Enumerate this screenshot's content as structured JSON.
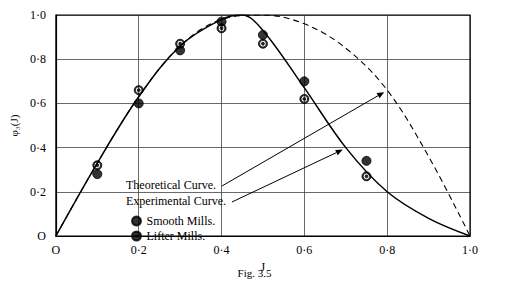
{
  "chart_data": {
    "type": "line",
    "title": "Fig. 3.5",
    "xlabel": "J",
    "ylabel": "φ₃(J)",
    "xlim": [
      0,
      1
    ],
    "ylim": [
      0,
      1
    ],
    "xticks": [
      {
        "value": 0,
        "label": "O"
      },
      {
        "value": 0.2,
        "label": "0·2"
      },
      {
        "value": 0.4,
        "label": "0·4"
      },
      {
        "value": 0.6,
        "label": "0·6"
      },
      {
        "value": 0.8,
        "label": "0·8"
      },
      {
        "value": 1,
        "label": "1·0"
      }
    ],
    "yticks": [
      {
        "value": 0,
        "label": "O"
      },
      {
        "value": 0.2,
        "label": "0·2"
      },
      {
        "value": 0.4,
        "label": "0·4"
      },
      {
        "value": 0.6,
        "label": "0·6"
      },
      {
        "value": 0.8,
        "label": "0·8"
      },
      {
        "value": 1,
        "label": "1·0"
      }
    ],
    "grid": true,
    "legend": "bottom-left",
    "series": [
      {
        "name": "Theoretical Curve.",
        "type": "line",
        "line_style": "dashed",
        "color": "#000000",
        "x": [
          0,
          0.1,
          0.2,
          0.3,
          0.4,
          0.5,
          0.6,
          0.7,
          0.8,
          0.9,
          1.0
        ],
        "values": [
          0,
          0.33,
          0.63,
          0.86,
          0.98,
          1.0,
          0.96,
          0.85,
          0.66,
          0.36,
          0
        ]
      },
      {
        "name": "Experimental Curve.",
        "type": "line",
        "line_style": "solid",
        "color": "#000000",
        "x": [
          0,
          0.1,
          0.2,
          0.3,
          0.4,
          0.45,
          0.5,
          0.6,
          0.7,
          0.8,
          0.9,
          1.0
        ],
        "values": [
          0,
          0.33,
          0.63,
          0.86,
          0.98,
          1.0,
          0.93,
          0.67,
          0.4,
          0.2,
          0.08,
          0
        ]
      },
      {
        "name": "Smooth Mills.",
        "type": "scatter",
        "marker": "filled_circle",
        "color": "#000000",
        "x": [
          0.1,
          0.2,
          0.3,
          0.4,
          0.5,
          0.6,
          0.75
        ],
        "values": [
          0.28,
          0.6,
          0.84,
          0.97,
          0.91,
          0.7,
          0.34
        ]
      },
      {
        "name": "Lifter Mills.",
        "type": "scatter",
        "marker": "circled_dot",
        "color": "#000000",
        "x": [
          0.1,
          0.2,
          0.3,
          0.4,
          0.5,
          0.6,
          0.75
        ],
        "values": [
          0.32,
          0.66,
          0.87,
          0.94,
          0.87,
          0.62,
          0.27
        ]
      }
    ]
  }
}
